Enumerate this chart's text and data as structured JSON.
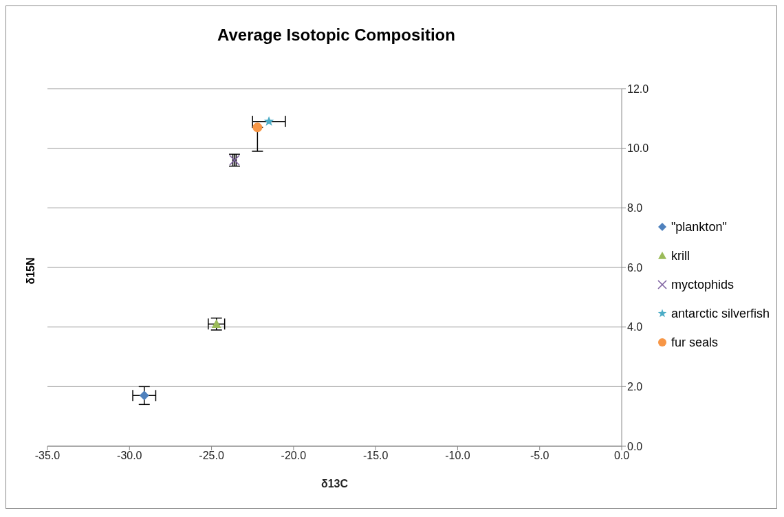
{
  "chart_data": {
    "type": "scatter",
    "title": "Average Isotopic Composition",
    "xlabel": "δ13C",
    "ylabel": "δ15N",
    "xlim": [
      -35,
      0
    ],
    "xticks": [
      {
        "value": -35,
        "label": "-35.0"
      },
      {
        "value": -30,
        "label": "-30.0"
      },
      {
        "value": -25,
        "label": "-25.0"
      },
      {
        "value": -20,
        "label": "-20.0"
      },
      {
        "value": -15,
        "label": "-15.0"
      },
      {
        "value": -10,
        "label": "-10.0"
      },
      {
        "value": -5,
        "label": "-5.0"
      },
      {
        "value": 0,
        "label": "0.0"
      }
    ],
    "ylim": [
      0,
      12
    ],
    "yticks": [
      {
        "value": 0,
        "label": "0.0"
      },
      {
        "value": 2,
        "label": "2.0"
      },
      {
        "value": 4,
        "label": "4.0"
      },
      {
        "value": 6,
        "label": "6.0"
      },
      {
        "value": 8,
        "label": "8.0"
      },
      {
        "value": 10,
        "label": "10.0"
      },
      {
        "value": 12,
        "label": "12.0"
      }
    ],
    "grid": "y",
    "legend": "right",
    "series": [
      {
        "name": "\"plankton\"",
        "color": "#4f81bd",
        "marker": "diamond",
        "x": [
          -29.1
        ],
        "values": [
          1.7
        ],
        "errors": [
          0.3
        ],
        "xerrors": [
          0.7
        ]
      },
      {
        "name": "krill",
        "color": "#9bbb59",
        "marker": "triangle",
        "x": [
          -24.7
        ],
        "values": [
          4.1
        ],
        "errors": [
          0.2
        ],
        "xerrors": [
          0.5
        ]
      },
      {
        "name": "myctophids",
        "color": "#8064a2",
        "marker": "cross",
        "x": [
          -23.6
        ],
        "values": [
          9.6
        ],
        "errors": [
          0.2
        ],
        "xerrors": [
          0.1
        ]
      },
      {
        "name": "antarctic silverfish",
        "color": "#4bacc6",
        "marker": "star",
        "x": [
          -21.5
        ],
        "values": [
          10.9
        ],
        "errors": [
          null
        ],
        "xerrors": [
          [
            -22.5,
            -20.5
          ]
        ]
      },
      {
        "name": "fur seals",
        "color": "#f79646",
        "marker": "circle",
        "x": [
          -22.2
        ],
        "values": [
          10.7
        ],
        "errors": [
          [
            9.9,
            10.7
          ]
        ],
        "xerrors": [
          null
        ]
      }
    ]
  }
}
